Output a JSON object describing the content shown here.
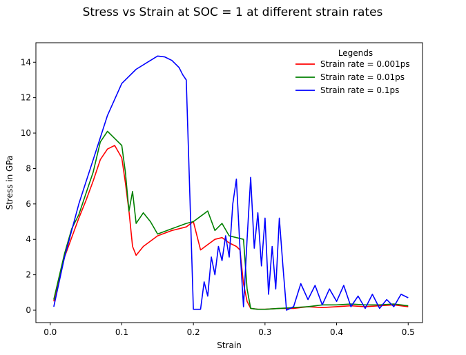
{
  "chart_data": {
    "type": "line",
    "title": "Stress vs Strain at SOC = 1 at different strain rates",
    "xlabel": "Strain",
    "ylabel": "Stress in GPa",
    "xlim": [
      -0.02,
      0.52
    ],
    "ylim": [
      -0.7,
      15.1
    ],
    "xticks": [
      "0.0",
      "0.1",
      "0.2",
      "0.3",
      "0.4",
      "0.5"
    ],
    "xtick_values": [
      0.0,
      0.1,
      0.2,
      0.3,
      0.4,
      0.5
    ],
    "yticks": [
      "0",
      "2",
      "4",
      "6",
      "8",
      "10",
      "12",
      "14"
    ],
    "ytick_values": [
      0,
      2,
      4,
      6,
      8,
      10,
      12,
      14
    ],
    "grid": false,
    "legend": {
      "title": "Legends",
      "placement": "top-right"
    },
    "series": [
      {
        "name": "Strain rate = 0.001ps",
        "color": "#ff0000",
        "x": [
          0.005,
          0.02,
          0.04,
          0.05,
          0.06,
          0.07,
          0.08,
          0.09,
          0.1,
          0.105,
          0.11,
          0.115,
          0.12,
          0.13,
          0.15,
          0.17,
          0.19,
          0.2,
          0.205,
          0.21,
          0.22,
          0.23,
          0.24,
          0.25,
          0.26,
          0.265,
          0.27,
          0.275,
          0.28,
          0.29,
          0.3,
          0.32,
          0.34,
          0.36,
          0.38,
          0.4,
          0.42,
          0.44,
          0.46,
          0.48,
          0.5
        ],
        "y": [
          0.5,
          3.0,
          5.2,
          6.2,
          7.3,
          8.5,
          9.1,
          9.3,
          8.6,
          7.2,
          5.6,
          3.6,
          3.1,
          3.6,
          4.2,
          4.5,
          4.7,
          5.0,
          4.2,
          3.4,
          3.7,
          4.0,
          4.1,
          3.8,
          3.6,
          3.4,
          1.5,
          0.5,
          0.1,
          0.05,
          0.05,
          0.1,
          0.1,
          0.2,
          0.15,
          0.2,
          0.25,
          0.2,
          0.25,
          0.3,
          0.2
        ]
      },
      {
        "name": "Strain rate = 0.01ps",
        "color": "#008000",
        "x": [
          0.005,
          0.02,
          0.03,
          0.04,
          0.05,
          0.06,
          0.07,
          0.08,
          0.09,
          0.1,
          0.105,
          0.11,
          0.115,
          0.12,
          0.13,
          0.14,
          0.15,
          0.17,
          0.19,
          0.2,
          0.21,
          0.22,
          0.23,
          0.24,
          0.25,
          0.26,
          0.27,
          0.275,
          0.28,
          0.29,
          0.3,
          0.32,
          0.34,
          0.36,
          0.38,
          0.4,
          0.42,
          0.44,
          0.46,
          0.48,
          0.5
        ],
        "y": [
          0.6,
          3.2,
          4.6,
          5.4,
          6.6,
          7.8,
          9.5,
          10.1,
          9.7,
          9.3,
          7.8,
          5.6,
          6.7,
          4.9,
          5.5,
          5.0,
          4.3,
          4.6,
          4.9,
          5.0,
          5.3,
          5.6,
          4.5,
          4.9,
          4.2,
          4.1,
          4.0,
          1.2,
          0.1,
          0.05,
          0.05,
          0.1,
          0.15,
          0.2,
          0.3,
          0.3,
          0.35,
          0.3,
          0.3,
          0.35,
          0.25
        ]
      },
      {
        "name": "Strain rate = 0.1ps",
        "color": "#0000ff",
        "x": [
          0.005,
          0.02,
          0.04,
          0.06,
          0.08,
          0.1,
          0.12,
          0.14,
          0.15,
          0.16,
          0.17,
          0.18,
          0.185,
          0.19,
          0.195,
          0.2,
          0.21,
          0.215,
          0.22,
          0.225,
          0.23,
          0.235,
          0.24,
          0.245,
          0.25,
          0.255,
          0.26,
          0.265,
          0.27,
          0.275,
          0.28,
          0.285,
          0.29,
          0.295,
          0.3,
          0.305,
          0.31,
          0.315,
          0.32,
          0.325,
          0.33,
          0.34,
          0.35,
          0.36,
          0.37,
          0.38,
          0.39,
          0.4,
          0.41,
          0.42,
          0.43,
          0.44,
          0.45,
          0.46,
          0.47,
          0.48,
          0.49,
          0.5
        ],
        "y": [
          0.2,
          3.0,
          6.0,
          8.5,
          11.0,
          12.8,
          13.6,
          14.1,
          14.35,
          14.3,
          14.1,
          13.7,
          13.3,
          13.0,
          6.5,
          0.05,
          0.05,
          1.6,
          0.8,
          3.0,
          2.0,
          3.6,
          2.8,
          4.2,
          3.0,
          6.0,
          7.4,
          3.5,
          0.2,
          4.0,
          7.5,
          3.5,
          5.5,
          2.5,
          5.2,
          0.9,
          3.6,
          1.2,
          5.2,
          2.5,
          0.0,
          0.2,
          1.5,
          0.6,
          1.4,
          0.3,
          1.2,
          0.5,
          1.4,
          0.2,
          0.8,
          0.1,
          0.9,
          0.1,
          0.6,
          0.2,
          0.9,
          0.7
        ]
      }
    ]
  }
}
